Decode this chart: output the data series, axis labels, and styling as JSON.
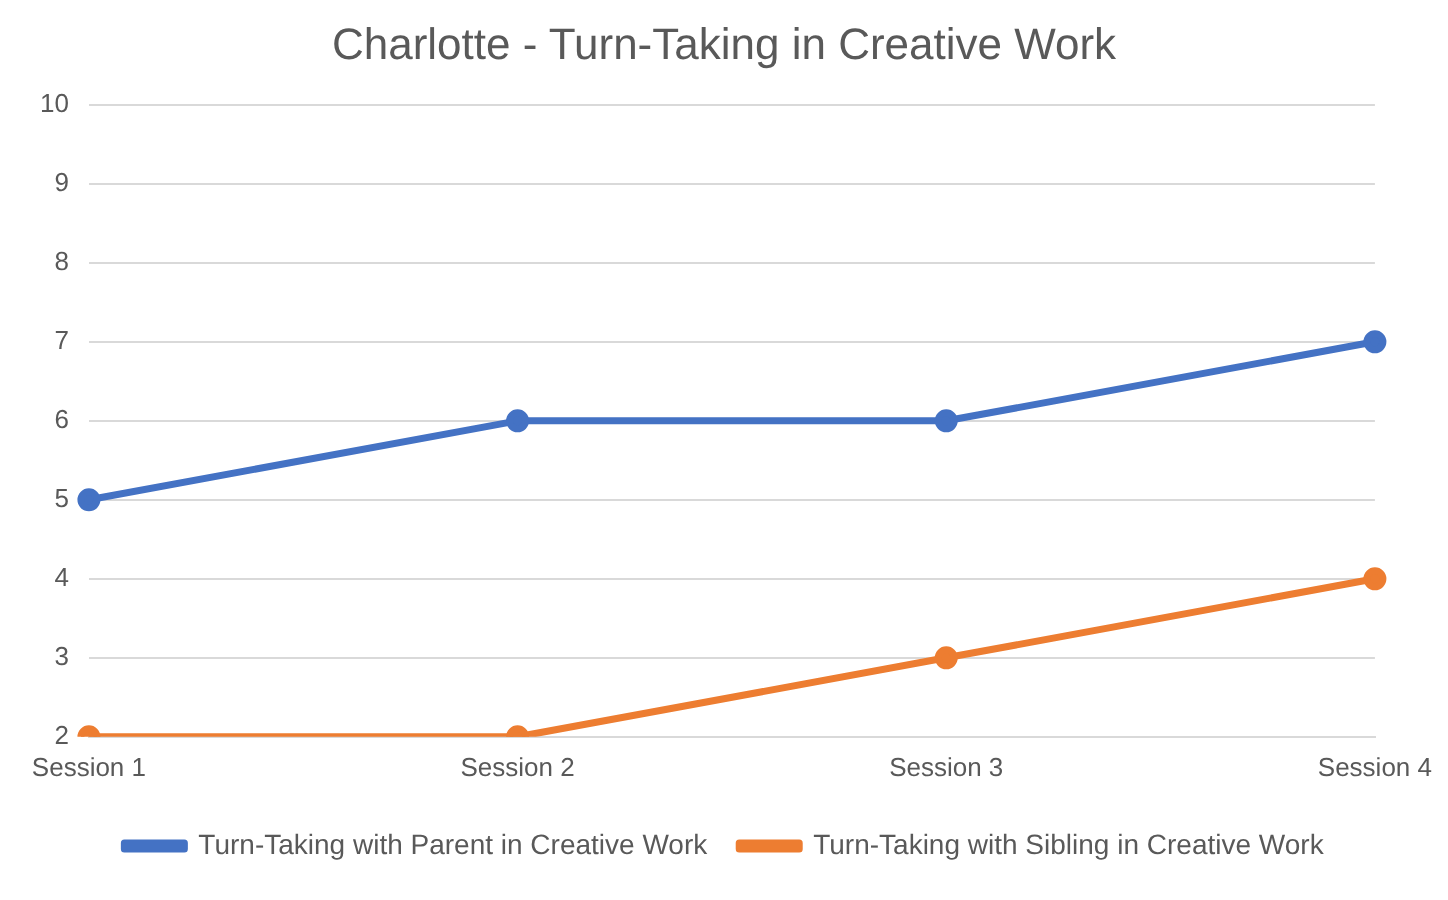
{
  "chart_data": {
    "type": "line",
    "title": "Charlotte - Turn-Taking in Creative Work",
    "categories": [
      "Session 1",
      "Session 2",
      "Session 3",
      "Session 4"
    ],
    "series": [
      {
        "name": "Turn-Taking with Parent in Creative Work",
        "color": "#4472c4",
        "values": [
          5,
          6,
          6,
          7
        ]
      },
      {
        "name": "Turn-Taking with Sibling in Creative Work",
        "color": "#ed7d31",
        "values": [
          2,
          2,
          3,
          4
        ]
      }
    ],
    "ylim": [
      2,
      10
    ],
    "yticks": [
      2,
      3,
      4,
      5,
      6,
      7,
      8,
      9,
      10
    ],
    "grid": "y",
    "legend": "bottom",
    "marker": "circle",
    "line_style": "solid"
  }
}
